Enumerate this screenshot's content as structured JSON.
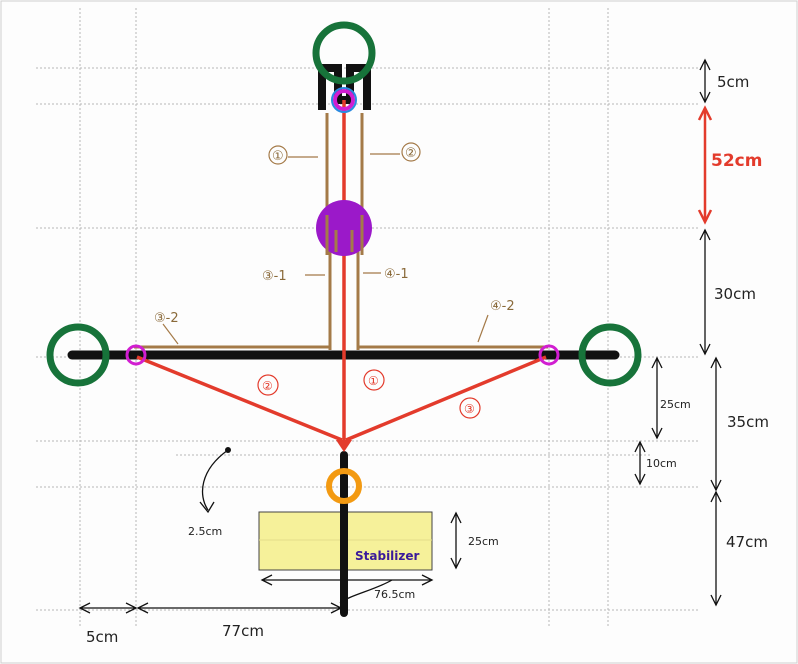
{
  "dimensions": {
    "top_cap": "5cm",
    "upper_arm": "52cm",
    "mid_arm": "30cm",
    "cross_to_joint": "25cm",
    "joint_to_hub": "10cm",
    "cross_to_hub": "35cm",
    "hub_to_base": "47cm",
    "side_offset": "5cm",
    "half_span": "77cm",
    "pole_width": "2.5cm",
    "stabilizer_height": "25cm",
    "stabilizer_width": "76.5cm"
  },
  "labels": {
    "stabilizer": "Stabilizer",
    "brown_rod_1": "①",
    "brown_rod_2": "②",
    "brown_rod_3_1": "③-1",
    "brown_rod_4_1": "④-1",
    "brown_rod_3_2": "③-2",
    "brown_rod_4_2": "④-2",
    "red_strut_1": "①",
    "red_strut_2": "②",
    "red_strut_3": "③"
  },
  "colors": {
    "frame": "#111111",
    "strut": "#e33b2c",
    "rod": "#a47a48",
    "wheel": "#17733a",
    "joint": "#d11ed1",
    "center_ball": "#9b19c9",
    "hub": "#f39a12",
    "stabilizer_fill": "#f6f19a",
    "grid": "#bdbdbd"
  }
}
